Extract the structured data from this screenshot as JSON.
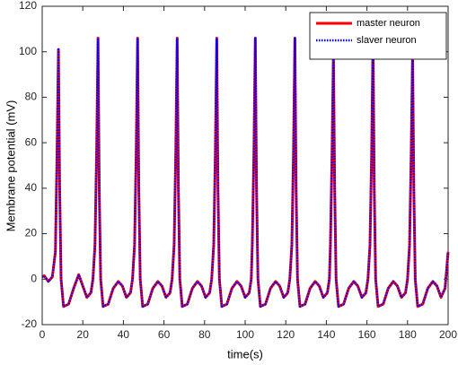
{
  "chart_data": {
    "type": "line",
    "x_label": "time(s)",
    "y_label": "Membrane potential (mV)",
    "x": [
      0,
      1,
      3,
      5,
      6.5,
      7.3,
      8,
      8.6,
      9.3,
      10.5,
      13,
      15.5,
      18,
      20,
      22,
      24,
      25,
      26,
      26.8,
      27.5,
      28.1,
      28.8,
      30,
      32.5,
      35,
      37.5,
      39.5,
      41.5,
      43.5,
      44.5,
      45.5,
      46.3,
      47,
      47.6,
      48.3,
      49.5,
      52,
      54.5,
      57,
      59,
      61,
      63,
      64,
      65,
      65.8,
      66.5,
      67.1,
      67.8,
      69,
      71.5,
      74,
      76.5,
      78.5,
      80.5,
      82.5,
      83.5,
      84.5,
      85.3,
      86,
      86.6,
      87.3,
      88.5,
      91,
      93.5,
      96,
      98,
      100,
      102,
      103,
      103.5,
      104.3,
      105,
      105.6,
      106.3,
      107.5,
      110,
      112.5,
      115,
      117,
      119,
      121,
      122,
      123,
      123.8,
      124.5,
      125.1,
      125.8,
      127,
      129.5,
      132,
      134.5,
      136.5,
      138.5,
      140.5,
      141.5,
      142,
      142.8,
      143.5,
      144.1,
      144.8,
      146,
      148.5,
      151,
      153.5,
      155.5,
      157.5,
      159.5,
      160.5,
      161.5,
      162.3,
      163,
      163.6,
      164.3,
      165.5,
      168,
      170.5,
      173,
      175,
      177,
      179,
      180,
      181,
      181.8,
      182.5,
      183.1,
      183.8,
      185,
      187.5,
      190,
      192.5,
      194.5,
      196.5,
      198.5,
      200
    ],
    "series": [
      {
        "name": "master neuron",
        "color": "#ff0000",
        "linestyle": "solid",
        "values": [
          1,
          1.5,
          -1,
          1,
          12,
          55,
          101,
          40,
          0,
          -12,
          -11,
          -4,
          2,
          -3,
          -8,
          -6,
          0,
          15,
          55,
          106,
          40,
          0,
          -12,
          -11,
          -4,
          -1,
          -3,
          -8,
          -6,
          0,
          15,
          55,
          106,
          40,
          0,
          -12,
          -11,
          -4,
          -1,
          -3,
          -8,
          -6,
          0,
          15,
          55,
          106,
          40,
          0,
          -12,
          -11,
          -4,
          -1,
          -3,
          -8,
          -6,
          0,
          15,
          55,
          106,
          40,
          0,
          -12,
          -11,
          -4,
          -1,
          -3,
          -8,
          -6,
          0,
          15,
          55,
          106,
          40,
          0,
          -12,
          -11,
          -4,
          -1,
          -3,
          -8,
          -6,
          0,
          15,
          55,
          106,
          40,
          0,
          -12,
          -11,
          -4,
          -1,
          -3,
          -8,
          -6,
          0,
          15,
          55,
          100,
          40,
          0,
          -12,
          -11,
          -4,
          -1,
          -3,
          -8,
          -6,
          0,
          15,
          55,
          107,
          40,
          0,
          -12,
          -11,
          -4,
          -1,
          -3,
          -8,
          -6,
          0,
          15,
          55,
          100,
          40,
          0,
          -12,
          -11,
          -4,
          -1,
          -3,
          -8,
          -4,
          12
        ]
      },
      {
        "name": "slaver neuron",
        "color": "#0000ff",
        "linestyle": "dotted",
        "values": [
          1,
          1.5,
          -1,
          1,
          12,
          55,
          101,
          40,
          0,
          -12,
          -11,
          -4,
          2,
          -3,
          -8,
          -6,
          0,
          15,
          55,
          106,
          40,
          0,
          -12,
          -11,
          -4,
          -1,
          -3,
          -8,
          -6,
          0,
          15,
          55,
          106,
          40,
          0,
          -12,
          -11,
          -4,
          -1,
          -3,
          -8,
          -6,
          0,
          15,
          55,
          106,
          40,
          0,
          -12,
          -11,
          -4,
          -1,
          -3,
          -8,
          -6,
          0,
          15,
          55,
          106,
          40,
          0,
          -12,
          -11,
          -4,
          -1,
          -3,
          -8,
          -6,
          0,
          15,
          55,
          106,
          40,
          0,
          -12,
          -11,
          -4,
          -1,
          -3,
          -8,
          -6,
          0,
          15,
          55,
          106,
          40,
          0,
          -12,
          -11,
          -4,
          -1,
          -3,
          -8,
          -6,
          0,
          15,
          55,
          100,
          40,
          0,
          -12,
          -11,
          -4,
          -1,
          -3,
          -8,
          -6,
          0,
          15,
          55,
          107,
          40,
          0,
          -12,
          -11,
          -4,
          -1,
          -3,
          -8,
          -6,
          0,
          15,
          55,
          100,
          40,
          0,
          -12,
          -11,
          -4,
          -1,
          -3,
          -8,
          -4,
          12
        ]
      }
    ],
    "xlim": [
      0,
      200
    ],
    "xticks": [
      0,
      20,
      40,
      60,
      80,
      100,
      120,
      140,
      160,
      180,
      200
    ],
    "ylim": [
      -20,
      120
    ],
    "yticks": [
      -20,
      0,
      20,
      40,
      60,
      80,
      100,
      120
    ],
    "legend": "upper right"
  }
}
